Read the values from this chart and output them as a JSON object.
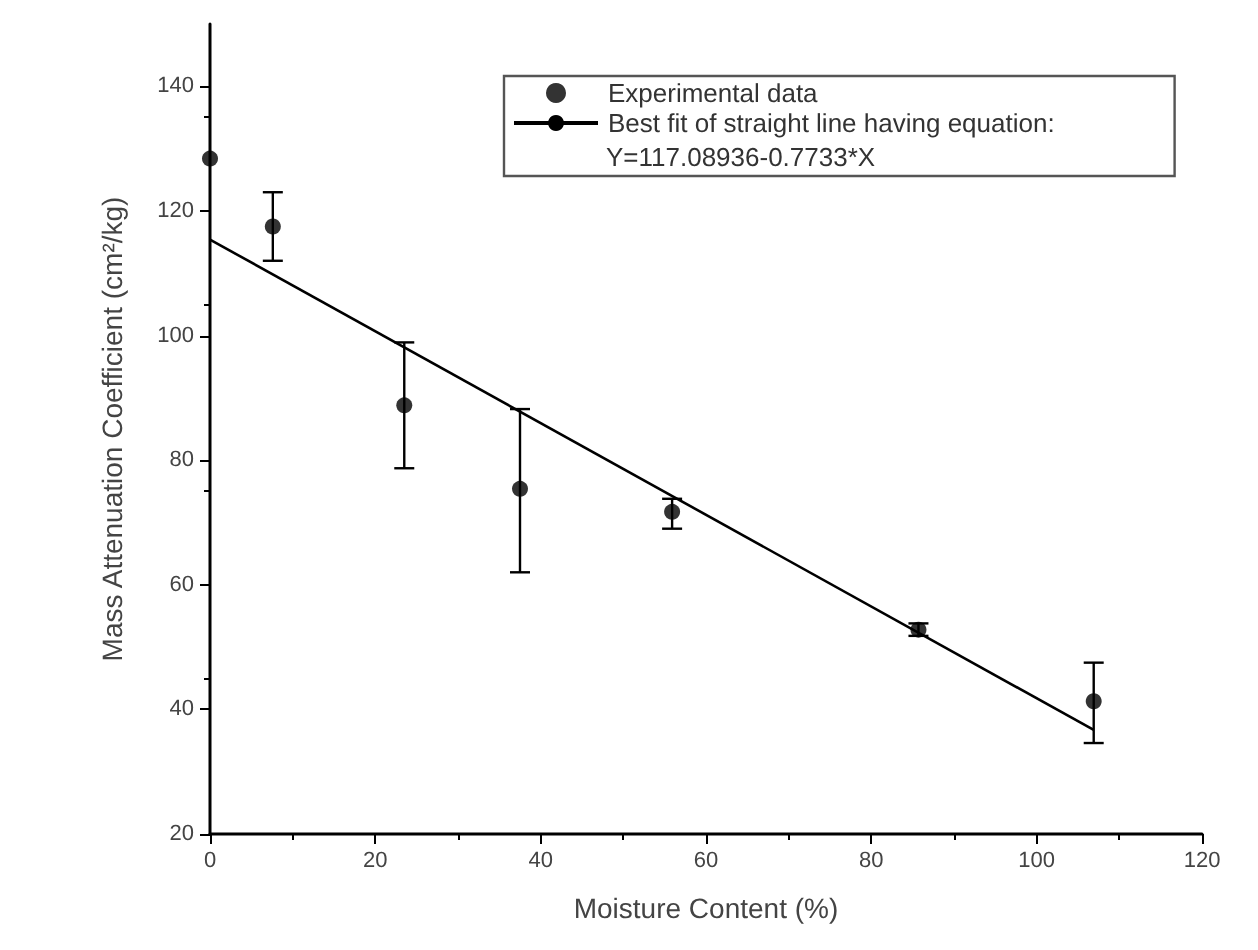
{
  "chart_data": {
    "type": "scatter",
    "xlabel": "Moisture Content (%)",
    "ylabel": "Mass Attenuation Coefficient (cm²/kg)",
    "series": [
      {
        "name": "Experimental data",
        "type": "scatter",
        "color": "#000000",
        "x": [
          0,
          7.6,
          23.5,
          37.5,
          55.9,
          85.7,
          106.9
        ],
        "values": [
          128.4,
          117.5,
          88.8,
          75.4,
          71.7,
          52.8,
          41.3
        ],
        "errors": [
          null,
          [
            112,
            123
          ],
          [
            78.7,
            98.9
          ],
          [
            62,
            88.2
          ],
          [
            69,
            73.8
          ],
          [
            51.8,
            53.8
          ],
          [
            34.6,
            47.5
          ]
        ],
        "marker": "circle"
      },
      {
        "name": "Best fit of straight line having equation:",
        "type": "line",
        "color": "#000000",
        "x": [
          0,
          106.9
        ],
        "values": [
          115.4,
          36.7
        ],
        "marker": "none",
        "line_style": "solid"
      }
    ],
    "annotations": [
      "Y=117.08936-0.7733*X"
    ],
    "xlim": [
      0,
      120
    ],
    "xticks": [
      0,
      20,
      40,
      60,
      80,
      100,
      120
    ],
    "ylim": [
      20,
      150
    ],
    "yticks": [
      20,
      40,
      60,
      80,
      100,
      120,
      140
    ],
    "grid": false,
    "legend": "top right"
  }
}
